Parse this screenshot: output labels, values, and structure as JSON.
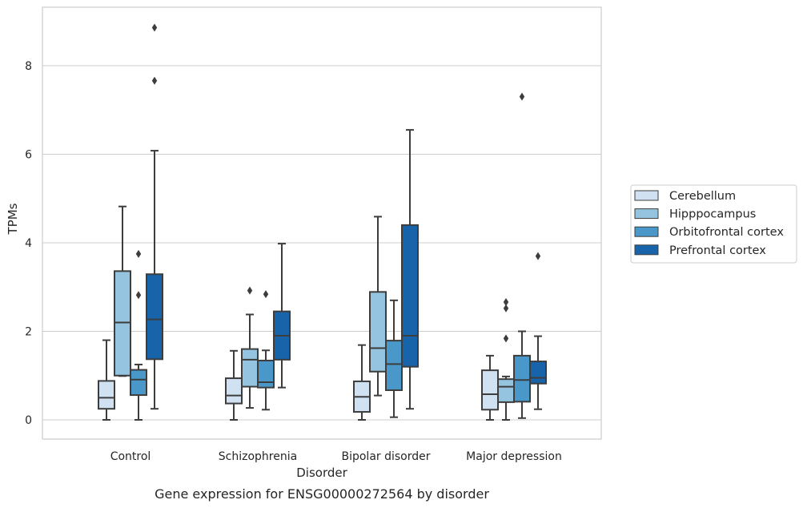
{
  "chart_data": {
    "type": "box",
    "caption": "Gene expression for ENSG00000272564 by disorder",
    "xlabel": "Disorder",
    "ylabel": "TPMs",
    "ylim": [
      -0.42,
      9.3
    ],
    "yticks": [
      0,
      2,
      4,
      6,
      8
    ],
    "grid": true,
    "legend_position": "right",
    "categories": [
      "Control",
      "Schizophrenia",
      "Bipolar disorder",
      "Major depression"
    ],
    "series": [
      {
        "name": "Cerebellum",
        "color": "#d0e1f2",
        "boxes": [
          {
            "whislo": 0.0,
            "q1": 0.25,
            "med": 0.5,
            "q3": 0.88,
            "whishi": 1.8,
            "fliers": []
          },
          {
            "whislo": 0.0,
            "q1": 0.37,
            "med": 0.55,
            "q3": 0.94,
            "whishi": 1.56,
            "fliers": []
          },
          {
            "whislo": 0.0,
            "q1": 0.18,
            "med": 0.52,
            "q3": 0.87,
            "whishi": 1.69,
            "fliers": []
          },
          {
            "whislo": 0.0,
            "q1": 0.23,
            "med": 0.58,
            "q3": 1.12,
            "whishi": 1.45,
            "fliers": []
          }
        ]
      },
      {
        "name": "Hipppocampus",
        "color": "#94c4df",
        "boxes": [
          {
            "whislo": 0.99,
            "q1": 1.0,
            "med": 2.2,
            "q3": 3.36,
            "whishi": 4.82,
            "fliers": []
          },
          {
            "whislo": 0.27,
            "q1": 0.75,
            "med": 1.36,
            "q3": 1.6,
            "whishi": 2.38,
            "fliers": [
              2.92
            ]
          },
          {
            "whislo": 0.55,
            "q1": 1.09,
            "med": 1.62,
            "q3": 2.89,
            "whishi": 4.59,
            "fliers": []
          },
          {
            "whislo": 0.0,
            "q1": 0.4,
            "med": 0.75,
            "q3": 0.92,
            "whishi": 0.98,
            "fliers": [
              1.84,
              2.52,
              2.66
            ]
          }
        ]
      },
      {
        "name": "Orbitofrontal cortex",
        "color": "#4a98c9",
        "boxes": [
          {
            "whislo": 0.0,
            "q1": 0.56,
            "med": 0.91,
            "q3": 1.13,
            "whishi": 1.25,
            "fliers": [
              2.82,
              3.75
            ]
          },
          {
            "whislo": 0.23,
            "q1": 0.73,
            "med": 0.85,
            "q3": 1.34,
            "whishi": 1.57,
            "fliers": [
              2.84
            ]
          },
          {
            "whislo": 0.06,
            "q1": 0.67,
            "med": 1.26,
            "q3": 1.79,
            "whishi": 2.7,
            "fliers": []
          },
          {
            "whislo": 0.04,
            "q1": 0.41,
            "med": 0.9,
            "q3": 1.45,
            "whishi": 2.0,
            "fliers": [
              7.3
            ]
          }
        ]
      },
      {
        "name": "Prefrontal cortex",
        "color": "#1764ab",
        "boxes": [
          {
            "whislo": 0.25,
            "q1": 1.37,
            "med": 2.27,
            "q3": 3.29,
            "whishi": 6.08,
            "fliers": [
              7.66,
              8.86
            ]
          },
          {
            "whislo": 0.73,
            "q1": 1.36,
            "med": 1.9,
            "q3": 2.45,
            "whishi": 3.98,
            "fliers": []
          },
          {
            "whislo": 0.25,
            "q1": 1.2,
            "med": 1.9,
            "q3": 4.4,
            "whishi": 6.55,
            "fliers": []
          },
          {
            "whislo": 0.24,
            "q1": 0.82,
            "med": 0.95,
            "q3": 1.32,
            "whishi": 1.89,
            "fliers": [
              3.7
            ]
          }
        ]
      }
    ]
  }
}
